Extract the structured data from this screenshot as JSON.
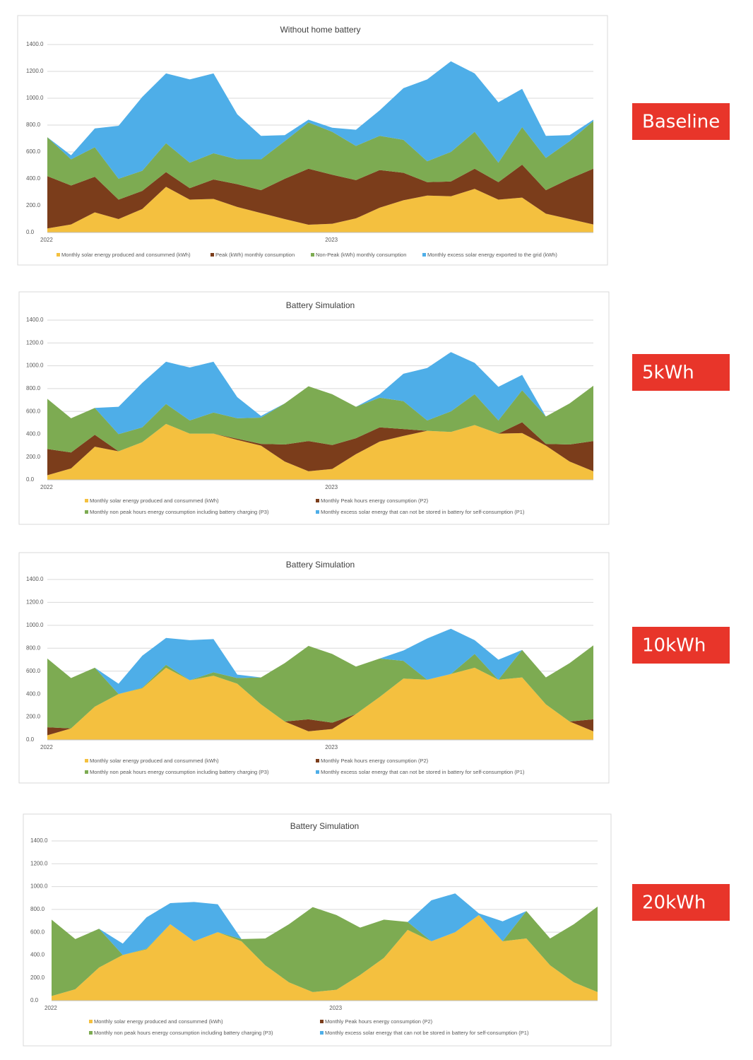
{
  "labels": [
    "Baseline",
    "5kWh",
    "10kWh",
    "20kWh"
  ],
  "chart_data": [
    {
      "type": "area",
      "stacked": true,
      "title": "Without home battery",
      "categories": [
        "2022",
        null,
        null,
        null,
        null,
        null,
        null,
        null,
        null,
        null,
        null,
        null,
        "2023",
        null,
        null,
        null,
        null,
        null,
        null,
        null,
        null,
        null,
        null,
        null
      ],
      "ylim": [
        0,
        1400
      ],
      "yticks": [
        {
          "value": 0,
          "label": "0.0"
        },
        {
          "value": 200,
          "label": "200.0"
        },
        {
          "value": 400,
          "label": "400.0"
        },
        {
          "value": 600,
          "label": "600.0"
        },
        {
          "value": 800,
          "label": "800.0"
        },
        {
          "value": 1000,
          "label": "1000.0"
        },
        {
          "value": 1200,
          "label": "1200.0"
        },
        {
          "value": 1400,
          "label": "1400.0"
        }
      ],
      "grid": true,
      "series": [
        {
          "name": "Monthly solar energy produced and consummed (kWh)",
          "color": "#f4c03f",
          "values": [
            30,
            60,
            150,
            100,
            175,
            340,
            245,
            250,
            190,
            145,
            100,
            58,
            65,
            105,
            185,
            240,
            275,
            270,
            325,
            245,
            260,
            140,
            100,
            60
          ]
        },
        {
          "name": "Peak (kWh) monthly consumption",
          "color": "#7b3d1b",
          "values": [
            390,
            290,
            265,
            145,
            135,
            110,
            85,
            145,
            170,
            170,
            300,
            417,
            365,
            285,
            280,
            205,
            100,
            110,
            150,
            130,
            245,
            175,
            300,
            415
          ]
        },
        {
          "name": "Non-Peak (kWh) monthly consumption",
          "color": "#7dab52",
          "values": [
            290,
            195,
            220,
            155,
            150,
            215,
            190,
            195,
            185,
            230,
            280,
            345,
            320,
            255,
            255,
            245,
            155,
            220,
            275,
            145,
            280,
            240,
            280,
            355
          ]
        },
        {
          "name": "Monthly excess solar energy exported to the grid (kWh)",
          "color": "#4eaee8",
          "values": [
            0,
            30,
            140,
            395,
            550,
            520,
            620,
            595,
            335,
            175,
            45,
            20,
            30,
            120,
            190,
            385,
            610,
            675,
            435,
            450,
            285,
            165,
            45,
            10
          ]
        }
      ]
    },
    {
      "type": "area",
      "stacked": true,
      "title": "Battery Simulation",
      "categories": [
        "2022",
        null,
        null,
        null,
        null,
        null,
        null,
        null,
        null,
        null,
        null,
        null,
        "2023",
        null,
        null,
        null,
        null,
        null,
        null,
        null,
        null,
        null,
        null,
        null
      ],
      "ylim": [
        0,
        1400
      ],
      "yticks": [
        {
          "value": 0,
          "label": "0.0"
        },
        {
          "value": 200,
          "label": "200.0"
        },
        {
          "value": 400,
          "label": "400.0"
        },
        {
          "value": 600,
          "label": "600.0"
        },
        {
          "value": 800,
          "label": "800.0"
        },
        {
          "value": 1000,
          "label": "1000.0"
        },
        {
          "value": 1200,
          "label": "1200.0"
        },
        {
          "value": 1400,
          "label": "1400.0"
        }
      ],
      "grid": true,
      "series": [
        {
          "name": "Monthly solar energy produced and consummed (kWh)",
          "color": "#f4c03f",
          "values": [
            40,
            100,
            290,
            250,
            330,
            490,
            405,
            405,
            350,
            300,
            160,
            75,
            95,
            225,
            335,
            385,
            430,
            420,
            480,
            405,
            410,
            300,
            160,
            75
          ]
        },
        {
          "name": "Monthly Peak hours energy consumption (P2)",
          "color": "#7b3d1b",
          "values": [
            230,
            140,
            105,
            0,
            0,
            0,
            0,
            0,
            10,
            15,
            150,
            265,
            210,
            140,
            125,
            60,
            0,
            0,
            0,
            0,
            95,
            15,
            150,
            265
          ]
        },
        {
          "name": "Monthly non peak hours energy consumption including battery charging (P3)",
          "color": "#7dab52",
          "values": [
            440,
            300,
            235,
            150,
            130,
            175,
            115,
            185,
            180,
            230,
            360,
            480,
            445,
            275,
            260,
            245,
            90,
            180,
            270,
            115,
            280,
            240,
            360,
            485
          ]
        },
        {
          "name": "Monthly excess solar energy that can not be stored in battery for self-consumption (P1)",
          "color": "#4eaee8",
          "values": [
            0,
            0,
            0,
            240,
            390,
            370,
            465,
            445,
            185,
            15,
            0,
            0,
            0,
            0,
            30,
            240,
            460,
            520,
            275,
            295,
            135,
            0,
            0,
            0
          ]
        }
      ]
    },
    {
      "type": "area",
      "stacked": true,
      "title": "Battery Simulation",
      "categories": [
        "2022",
        null,
        null,
        null,
        null,
        null,
        null,
        null,
        null,
        null,
        null,
        null,
        "2023",
        null,
        null,
        null,
        null,
        null,
        null,
        null,
        null,
        null,
        null,
        null
      ],
      "ylim": [
        0,
        1400
      ],
      "yticks": [
        {
          "value": 0,
          "label": "0.0"
        },
        {
          "value": 200,
          "label": "200.0"
        },
        {
          "value": 400,
          "label": "400.0"
        },
        {
          "value": 600,
          "label": "600.0"
        },
        {
          "value": 800,
          "label": "800.0"
        },
        {
          "value": 1000,
          "label": "1000.0"
        },
        {
          "value": 1200,
          "label": "1200.0"
        },
        {
          "value": 1400,
          "label": "1400.0"
        }
      ],
      "grid": true,
      "series": [
        {
          "name": "Monthly solar energy produced and consummed (kWh)",
          "color": "#f4c03f",
          "values": [
            40,
            100,
            290,
            400,
            450,
            630,
            520,
            560,
            490,
            310,
            160,
            75,
            95,
            225,
            375,
            535,
            525,
            575,
            630,
            525,
            545,
            310,
            160,
            75
          ]
        },
        {
          "name": "Monthly Peak hours energy consumption (P2)",
          "color": "#7b3d1b",
          "values": [
            70,
            0,
            0,
            0,
            0,
            0,
            0,
            0,
            0,
            0,
            0,
            105,
            55,
            0,
            0,
            0,
            0,
            0,
            0,
            0,
            0,
            0,
            0,
            105
          ]
        },
        {
          "name": "Monthly non peak hours energy consumption including battery charging (P3)",
          "color": "#7dab52",
          "values": [
            600,
            440,
            340,
            0,
            5,
            25,
            0,
            30,
            50,
            235,
            510,
            640,
            600,
            415,
            335,
            155,
            0,
            0,
            120,
            0,
            240,
            235,
            510,
            645
          ]
        },
        {
          "name": "Monthly excess solar energy that can not be stored in battery for self-consumption (P1)",
          "color": "#4eaee8",
          "values": [
            0,
            0,
            0,
            90,
            280,
            235,
            350,
            290,
            30,
            0,
            0,
            0,
            0,
            0,
            0,
            90,
            360,
            395,
            120,
            175,
            0,
            0,
            0,
            0
          ]
        }
      ]
    },
    {
      "type": "area",
      "stacked": true,
      "title": "Battery Simulation",
      "categories": [
        "2022",
        null,
        null,
        null,
        null,
        null,
        null,
        null,
        null,
        null,
        null,
        null,
        "2023",
        null,
        null,
        null,
        null,
        null,
        null,
        null,
        null,
        null,
        null,
        null
      ],
      "ylim": [
        0,
        1400
      ],
      "yticks": [
        {
          "value": 0,
          "label": "0.0"
        },
        {
          "value": 200,
          "label": "200.0"
        },
        {
          "value": 400,
          "label": "400.0"
        },
        {
          "value": 600,
          "label": "600.0"
        },
        {
          "value": 800,
          "label": "800.0"
        },
        {
          "value": 1000,
          "label": "1000.0"
        },
        {
          "value": 1200,
          "label": "1200.0"
        },
        {
          "value": 1400,
          "label": "1400.0"
        }
      ],
      "grid": true,
      "series": [
        {
          "name": "Monthly solar energy produced and consummed (kWh)",
          "color": "#f4c03f",
          "values": [
            40,
            100,
            290,
            400,
            450,
            670,
            520,
            600,
            520,
            310,
            160,
            75,
            95,
            225,
            375,
            620,
            520,
            600,
            750,
            520,
            545,
            310,
            160,
            75
          ]
        },
        {
          "name": "Monthly Peak hours energy consumption (P2)",
          "color": "#7b3d1b",
          "values": [
            0,
            0,
            0,
            0,
            0,
            0,
            0,
            0,
            0,
            0,
            0,
            0,
            0,
            0,
            0,
            0,
            0,
            0,
            0,
            0,
            0,
            0,
            0,
            0
          ]
        },
        {
          "name": "Monthly non peak hours energy consumption including battery charging (P3)",
          "color": "#7dab52",
          "values": [
            670,
            440,
            340,
            0,
            5,
            0,
            0,
            0,
            20,
            235,
            510,
            745,
            655,
            415,
            335,
            70,
            0,
            0,
            0,
            0,
            240,
            235,
            510,
            750
          ]
        },
        {
          "name": "Monthly excess solar energy that can not be stored in battery for self-consumption (P1)",
          "color": "#4eaee8",
          "values": [
            0,
            0,
            0,
            100,
            275,
            185,
            345,
            245,
            0,
            0,
            0,
            0,
            0,
            0,
            0,
            0,
            360,
            340,
            15,
            175,
            0,
            0,
            0,
            0
          ]
        }
      ]
    }
  ]
}
